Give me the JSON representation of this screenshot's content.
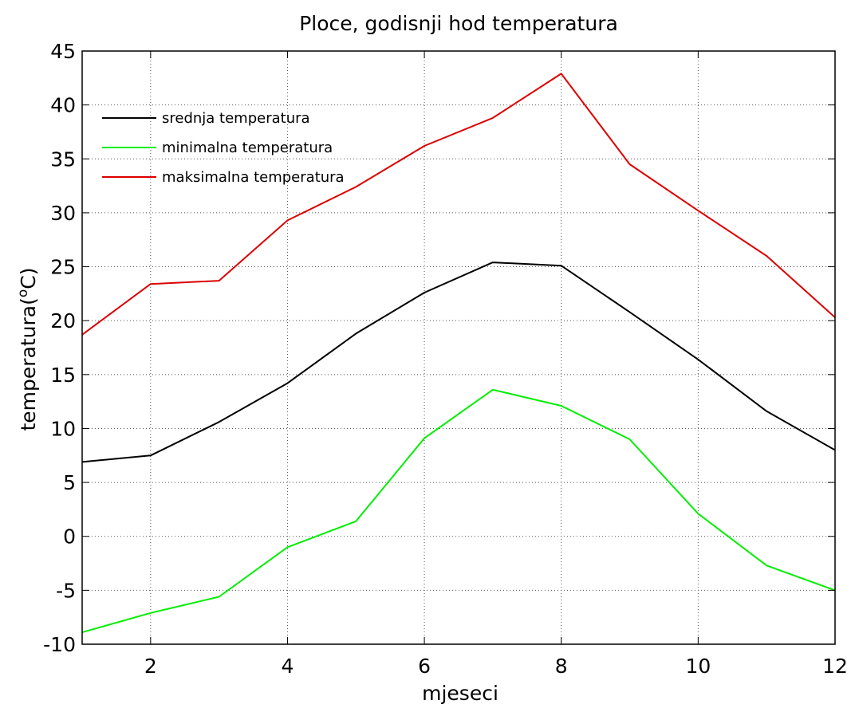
{
  "chart_data": {
    "type": "line",
    "title": "Ploce, godisnji hod temperatura",
    "xlabel": "mjeseci",
    "ylabel": {
      "text": "temperatura(",
      "superscript": "o",
      "unit": "C)"
    },
    "xlim": [
      1,
      12
    ],
    "ylim": [
      -10,
      45
    ],
    "xticks": [
      2,
      4,
      6,
      8,
      10,
      12
    ],
    "yticks": [
      -10,
      -5,
      0,
      5,
      10,
      15,
      20,
      25,
      30,
      35,
      40,
      45
    ],
    "grid": true,
    "legend_position": "top-left",
    "x": [
      1,
      2,
      3,
      4,
      5,
      6,
      7,
      8,
      9,
      10,
      11,
      12
    ],
    "series": [
      {
        "name": "srednja temperatura",
        "color": "#000000",
        "values": [
          6.9,
          7.5,
          10.6,
          14.2,
          18.8,
          22.6,
          25.4,
          25.1,
          20.8,
          16.4,
          11.6,
          8.0
        ]
      },
      {
        "name": "minimalna temperatura",
        "color": "#00ee00",
        "values": [
          -8.9,
          -7.1,
          -5.6,
          -1.0,
          1.4,
          9.1,
          13.6,
          12.1,
          9.0,
          2.1,
          -2.7,
          -5.0
        ]
      },
      {
        "name": "maksimalna temperatura",
        "color": "#dd0000",
        "values": [
          18.7,
          23.4,
          23.7,
          29.3,
          32.4,
          36.2,
          38.8,
          42.9,
          34.5,
          30.2,
          26.0,
          20.3
        ]
      }
    ]
  }
}
